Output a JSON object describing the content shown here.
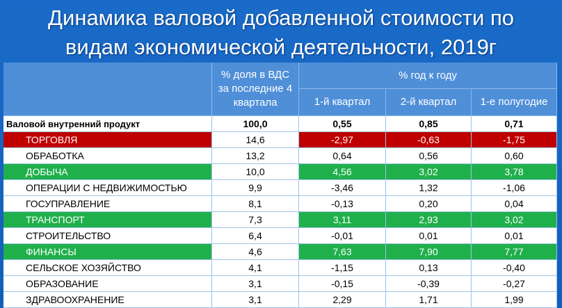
{
  "title": [
    "Динамика валовой добавленной стоимости по",
    "видам экономической деятельности, 2019г"
  ],
  "header": {
    "share": "% доля в ВДС за последние 4 квартала",
    "growth": "% год к году",
    "periods": [
      "1-й квартал",
      "2-й квартал",
      "1-е полугодие"
    ]
  },
  "rows": [
    {
      "name": "Валовой внутренний продукт",
      "cells": [
        "100,0",
        "0,55",
        "0,85",
        "0,71"
      ]
    },
    {
      "name": "ТОРГОВЛЯ",
      "cells": [
        "14,6",
        "-2,97",
        "-0,63",
        "-1,75"
      ],
      "color": "#c00000"
    },
    {
      "name": "ОБРАБОТКА",
      "cells": [
        "13,2",
        "0,64",
        "0,56",
        "0,60"
      ]
    },
    {
      "name": "ДОБЫЧА",
      "cells": [
        "10,0",
        "4,56",
        "3,02",
        "3,78"
      ],
      "color": "#20b04b"
    },
    {
      "name": "ОПЕРАЦИИ С НЕДВИЖИМОСТЬЮ",
      "cells": [
        "9,9",
        "-3,46",
        "1,32",
        "-1,06"
      ]
    },
    {
      "name": "ГОСУПРАВЛЕНИЕ",
      "cells": [
        "8,1",
        "-0,13",
        "0,20",
        "0,04"
      ]
    },
    {
      "name": "ТРАНСПОРТ",
      "cells": [
        "7,3",
        "3,11",
        "2,93",
        "3,02"
      ],
      "color": "#20b04b"
    },
    {
      "name": "СТРОИТЕЛЬСТВО",
      "cells": [
        "6,4",
        "-0,01",
        "0,01",
        "0,01"
      ]
    },
    {
      "name": "ФИНАНСЫ",
      "cells": [
        "4,6",
        "7,63",
        "7,90",
        "7,77"
      ],
      "color": "#20b04b"
    },
    {
      "name": "СЕЛЬСКОЕ ХОЗЯЙСТВО",
      "cells": [
        "4,1",
        "-1,15",
        "0,13",
        "-0,40"
      ]
    },
    {
      "name": "ОБРАЗОВАНИЕ",
      "cells": [
        "3,1",
        "-0,15",
        "-0,39",
        "-0,27"
      ]
    },
    {
      "name": "ЗДРАВООХРАНЕНИЕ",
      "cells": [
        "3,1",
        "2,29",
        "1,71",
        "1,99"
      ]
    }
  ]
}
